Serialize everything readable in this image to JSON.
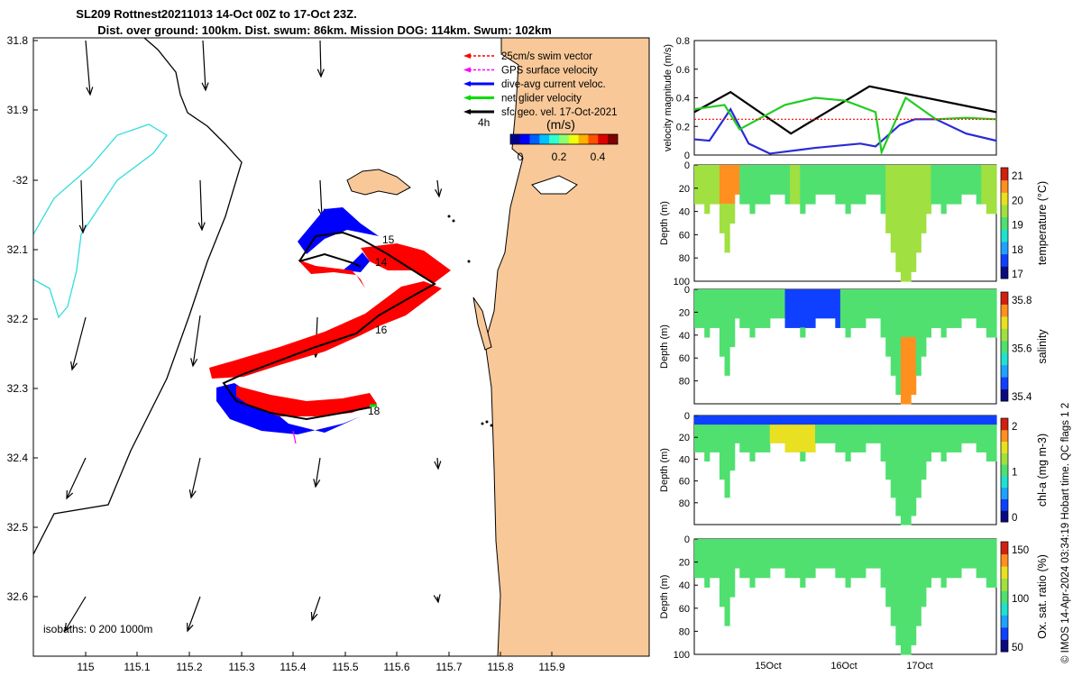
{
  "title_line1": "SL209 Rottnest20211013 14-Oct 00Z to 17-Oct 23Z.",
  "title_line2": "Dist. over ground: 100km. Dist. swum: 86km. Mission DOG: 114km. Swum: 102km",
  "credit": "© IMOS 14-Apr-2024 03:34:19 Hobart time. QC flags 1  2",
  "colors": {
    "land": "#f8c898",
    "gps": "#ff00ff",
    "dive_avg": "#0000ff",
    "net": "#00dd00",
    "swim": "#ff0000",
    "geo": "#000000",
    "isobath200": "#33dddd"
  },
  "map": {
    "lon_ticks": [
      "115",
      "115.1",
      "115.2",
      "115.3",
      "115.4",
      "115.5",
      "115.6",
      "115.7",
      "115.8",
      "115.9"
    ],
    "lat_ticks": [
      "31.8",
      "31.9",
      "-32",
      "32.1",
      "32.2",
      "32.3",
      "32.4",
      "32.5",
      "32.6"
    ],
    "legend": [
      {
        "label": "25cm/s swim vector",
        "color": "#ff0000",
        "dashed": true
      },
      {
        "label": "GPS surface velocity",
        "color": "#ff00ff",
        "dashed": true
      },
      {
        "label": "dive-avg current veloc.",
        "color": "#0000ff",
        "dashed": false
      },
      {
        "label": "net glider velocity",
        "color": "#00dd00",
        "dashed": false
      },
      {
        "label": "sfc geo. vel. 17-Oct-2021",
        "color": "#000000",
        "dashed": false
      }
    ],
    "legend_time": "4h",
    "colorbar_title": "(m/s)",
    "colorbar_ticks": [
      "0",
      "0.2",
      "0.4"
    ],
    "day_labels": [
      "15",
      "14",
      "16",
      "18"
    ],
    "isobath_label": "isobaths: 0   200  1000m"
  },
  "chart_data": [
    {
      "type": "line",
      "ylabel": "velocity magnitude (m/s)",
      "ylim": [
        0,
        0.8
      ],
      "yticks": [
        "0",
        "0.2",
        "0.4",
        "0.6",
        "0.8"
      ],
      "series": [
        {
          "color": "#000000",
          "x": [
            0,
            0.12,
            0.32,
            0.58,
            1.0
          ],
          "y": [
            0.3,
            0.44,
            0.15,
            0.48,
            0.3
          ]
        },
        {
          "color": "#2a2ad8",
          "x": [
            0,
            0.05,
            0.12,
            0.18,
            0.25,
            0.4,
            0.55,
            0.6,
            0.68,
            0.73,
            0.8,
            0.9,
            1.0
          ],
          "y": [
            0.11,
            0.1,
            0.32,
            0.08,
            0.01,
            0.05,
            0.08,
            0.06,
            0.21,
            0.25,
            0.25,
            0.15,
            0.1
          ]
        },
        {
          "color": "#22cc22",
          "x": [
            0,
            0.1,
            0.15,
            0.3,
            0.4,
            0.5,
            0.6,
            0.62,
            0.7,
            0.8,
            0.9,
            1.0
          ],
          "y": [
            0.32,
            0.35,
            0.18,
            0.35,
            0.4,
            0.38,
            0.3,
            0.02,
            0.4,
            0.25,
            0.26,
            0.25
          ]
        },
        {
          "color": "#ff0000",
          "x": [
            0,
            1.0
          ],
          "y": [
            0.25,
            0.25
          ]
        }
      ]
    },
    {
      "type": "heatmap",
      "name": "temperature",
      "ylabel": "Depth (m)",
      "cbar_label": "temperature (°C)",
      "cbar_ticks": [
        "17",
        "18",
        "19",
        "20",
        "21"
      ],
      "yticks": [
        "0",
        "20",
        "40",
        "60",
        "80",
        "100"
      ]
    },
    {
      "type": "heatmap",
      "name": "salinity",
      "ylabel": "Depth (m)",
      "cbar_label": "salinity",
      "cbar_ticks": [
        "35.4",
        "35.6",
        "35.8"
      ],
      "yticks": [
        "0",
        "20",
        "40",
        "60",
        "80"
      ]
    },
    {
      "type": "heatmap",
      "name": "chl-a",
      "ylabel": "Depth (m)",
      "cbar_label": "chl-a (mg m-3)",
      "cbar_ticks": [
        "0",
        "1",
        "2"
      ],
      "yticks": [
        "0",
        "20",
        "40",
        "60",
        "80"
      ]
    },
    {
      "type": "heatmap",
      "name": "oxygen",
      "ylabel": "Depth (m)",
      "cbar_label": "Ox. sat. ratio (%)",
      "cbar_ticks": [
        "50",
        "100",
        "150"
      ],
      "yticks": [
        "0",
        "20",
        "40",
        "60",
        "80",
        "100"
      ],
      "xticks": [
        "15Oct",
        "16Oct",
        "17Oct"
      ]
    }
  ]
}
